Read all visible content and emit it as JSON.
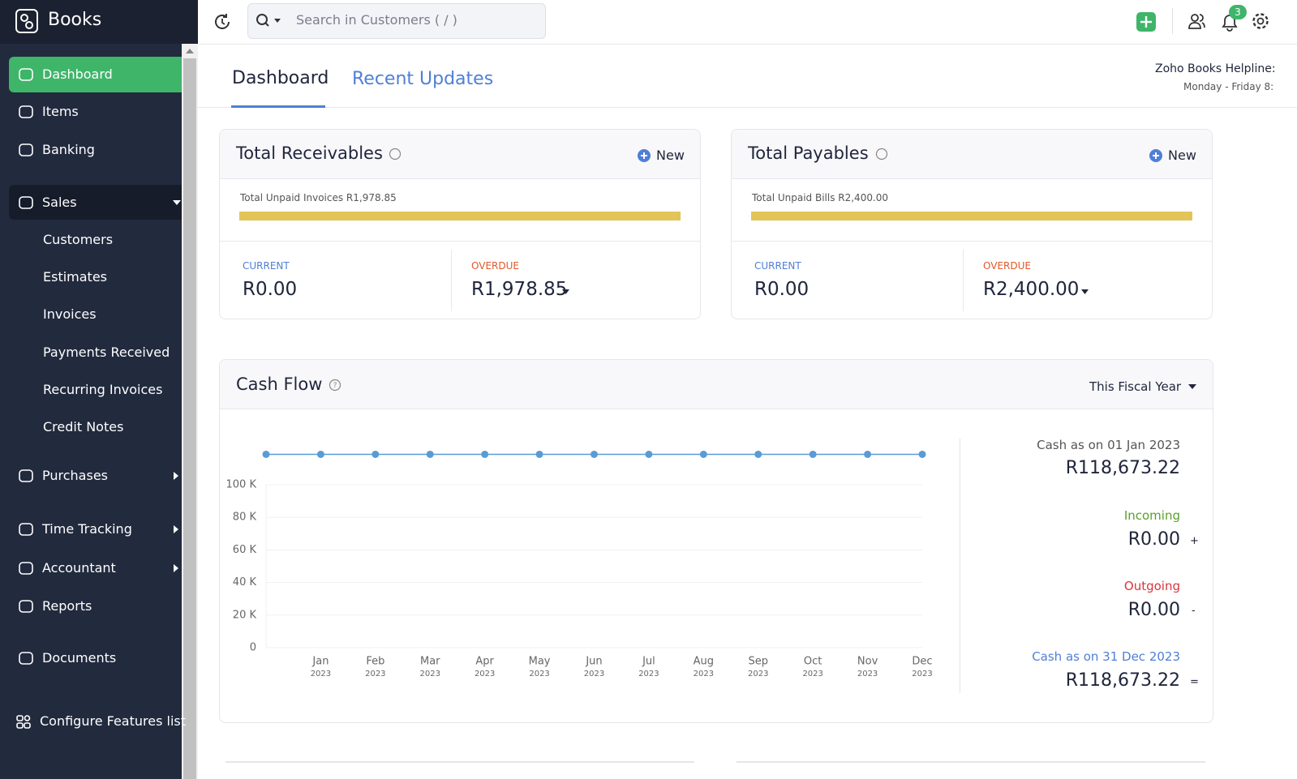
{
  "header": {
    "search_placeholder": "Search in Customers ( / )",
    "notification_count": 3
  },
  "sidebar": {
    "brand": "Books",
    "nav": [
      "Dashboard",
      "Items",
      "Banking",
      "Sales",
      "Customers",
      "Estimates",
      "Invoices",
      "Payments Received",
      "Recurring Invoices",
      "Credit Notes",
      "Purchases",
      "Time Tracking",
      "Accountant",
      "Reports",
      "Documents"
    ],
    "footer": "Configure Features list"
  },
  "tabs": [
    "Dashboard",
    "Recent Updates"
  ],
  "helpline": {
    "title": "Zoho Books Helpline:",
    "hours": "Monday - Friday 8:"
  },
  "receivables": {
    "title": "Total Receivables",
    "new": "New",
    "unpaid_label": "Total Unpaid Invoices R1,978.85",
    "current_label": "CURRENT",
    "current": "R0.00",
    "overdue_label": "OVERDUE",
    "overdue": "R1,978.85"
  },
  "payables": {
    "title": "Total Payables",
    "new": "New",
    "unpaid_label": "Total Unpaid Bills R2,400.00",
    "current_label": "CURRENT",
    "current": "R0.00",
    "overdue_label": "OVERDUE",
    "overdue": "R2,400.00"
  },
  "cash_flow": {
    "title": "Cash Flow",
    "period": "This Fiscal Year",
    "chart": {
      "type": "line",
      "categories": [
        null,
        {
          "month": "Jan",
          "year": "2023"
        },
        {
          "month": "Feb",
          "year": "2023"
        },
        {
          "month": "Mar",
          "year": "2023"
        },
        {
          "month": "Apr",
          "year": "2023"
        },
        {
          "month": "May",
          "year": "2023"
        },
        {
          "month": "Jun",
          "year": "2023"
        },
        {
          "month": "Jul",
          "year": "2023"
        },
        {
          "month": "Aug",
          "year": "2023"
        },
        {
          "month": "Sep",
          "year": "2023"
        },
        {
          "month": "Oct",
          "year": "2023"
        },
        {
          "month": "Nov",
          "year": "2023"
        },
        {
          "month": "Dec",
          "year": "2023"
        }
      ],
      "values": [
        118673.22,
        118673.22,
        118673.22,
        118673.22,
        118673.22,
        118673.22,
        118673.22,
        118673.22,
        118673.22,
        118673.22,
        118673.22,
        118673.22,
        118673.22
      ],
      "color": "#5b9bd5",
      "ylim": [
        0,
        120000
      ],
      "yticks": [
        0,
        {
          "value": 20000,
          "label": "20 K"
        },
        {
          "value": 40000,
          "label": "40 K"
        },
        {
          "value": 60000,
          "label": "60 K"
        },
        {
          "value": 80000,
          "label": "80 K"
        },
        {
          "value": 100000,
          "label": "100 K"
        }
      ],
      "grid": true
    },
    "summary": {
      "opening_label": "Cash as on 01 Jan 2023",
      "opening": "R118,673.22",
      "incoming_label": "Incoming",
      "incoming": "R0.00",
      "incoming_sign": "+",
      "outgoing_label": "Outgoing",
      "outgoing": "R0.00",
      "outgoing_sign": "-",
      "closing_label": "Cash as on 31 Dec 2023",
      "closing": "R118,673.22",
      "closing_sign": "="
    }
  }
}
